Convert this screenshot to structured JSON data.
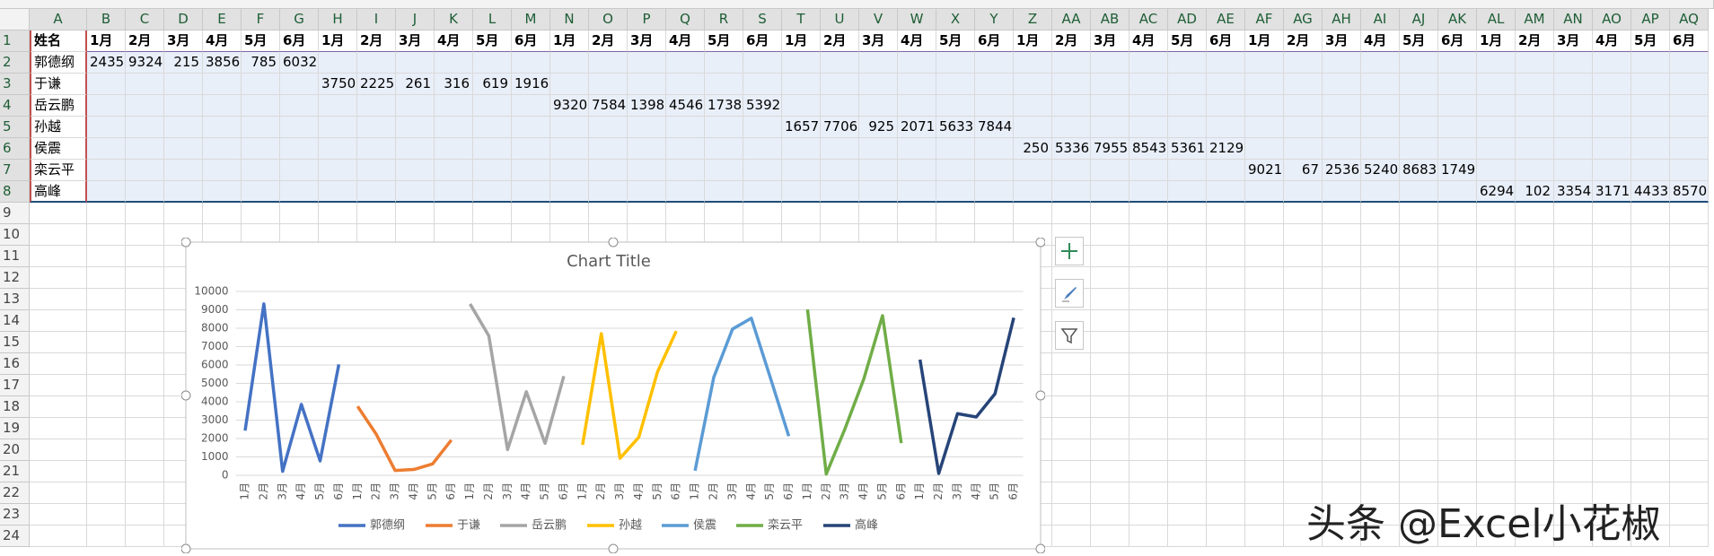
{
  "sheet": {
    "columns": [
      "A",
      "B",
      "C",
      "D",
      "E",
      "F",
      "G",
      "H",
      "I",
      "J",
      "K",
      "L",
      "M",
      "N",
      "O",
      "P",
      "Q",
      "R",
      "S",
      "T",
      "U",
      "V",
      "W",
      "X",
      "Y",
      "Z",
      "AA",
      "AB",
      "AC",
      "AD",
      "AE",
      "AF",
      "AG",
      "AH",
      "AI",
      "AJ",
      "AK",
      "AL",
      "AM",
      "AN",
      "AO",
      "AP",
      "AQ"
    ],
    "row_numbers": [
      1,
      2,
      3,
      4,
      5,
      6,
      7,
      8,
      9,
      10,
      11,
      12,
      13,
      14,
      15,
      16,
      17,
      18,
      19,
      20,
      21,
      22,
      23,
      24
    ],
    "rows": [
      [
        "姓名",
        "1月",
        "2月",
        "3月",
        "4月",
        "5月",
        "6月",
        "1月",
        "2月",
        "3月",
        "4月",
        "5月",
        "6月",
        "1月",
        "2月",
        "3月",
        "4月",
        "5月",
        "6月",
        "1月",
        "2月",
        "3月",
        "4月",
        "5月",
        "6月",
        "1月",
        "2月",
        "3月",
        "4月",
        "5月",
        "6月",
        "1月",
        "2月",
        "3月",
        "4月",
        "5月",
        "6月",
        "1月",
        "2月",
        "3月",
        "4月",
        "5月",
        "6月"
      ],
      [
        "郭德纲",
        2435,
        9324,
        215,
        3856,
        785,
        6032,
        null,
        null,
        null,
        null,
        null,
        null,
        null,
        null,
        null,
        null,
        null,
        null,
        null,
        null,
        null,
        null,
        null,
        null,
        null,
        null,
        null,
        null,
        null,
        null,
        null,
        null,
        null,
        null,
        null,
        null,
        null,
        null,
        null,
        null,
        null,
        null
      ],
      [
        "于谦",
        null,
        null,
        null,
        null,
        null,
        null,
        3750,
        2225,
        261,
        316,
        619,
        1916,
        null,
        null,
        null,
        null,
        null,
        null,
        null,
        null,
        null,
        null,
        null,
        null,
        null,
        null,
        null,
        null,
        null,
        null,
        null,
        null,
        null,
        null,
        null,
        null,
        null,
        null,
        null,
        null,
        null,
        null
      ],
      [
        "岳云鹏",
        null,
        null,
        null,
        null,
        null,
        null,
        null,
        null,
        null,
        null,
        null,
        null,
        9320,
        7584,
        1398,
        4546,
        1738,
        5392,
        null,
        null,
        null,
        null,
        null,
        null,
        null,
        null,
        null,
        null,
        null,
        null,
        null,
        null,
        null,
        null,
        null,
        null,
        null,
        null,
        null,
        null,
        null,
        null
      ],
      [
        "孙越",
        null,
        null,
        null,
        null,
        null,
        null,
        null,
        null,
        null,
        null,
        null,
        null,
        null,
        null,
        null,
        null,
        null,
        null,
        1657,
        7706,
        925,
        2071,
        5633,
        7844,
        null,
        null,
        null,
        null,
        null,
        null,
        null,
        null,
        null,
        null,
        null,
        null,
        null,
        null,
        null,
        null,
        null,
        null
      ],
      [
        "侯震",
        null,
        null,
        null,
        null,
        null,
        null,
        null,
        null,
        null,
        null,
        null,
        null,
        null,
        null,
        null,
        null,
        null,
        null,
        null,
        null,
        null,
        null,
        null,
        null,
        250,
        5336,
        7955,
        8543,
        5361,
        2129,
        null,
        null,
        null,
        null,
        null,
        null,
        null,
        null,
        null,
        null,
        null,
        null
      ],
      [
        "栾云平",
        null,
        null,
        null,
        null,
        null,
        null,
        null,
        null,
        null,
        null,
        null,
        null,
        null,
        null,
        null,
        null,
        null,
        null,
        null,
        null,
        null,
        null,
        null,
        null,
        null,
        null,
        null,
        null,
        null,
        null,
        9021,
        67,
        2536,
        5240,
        8683,
        1749,
        null,
        null,
        null,
        null,
        null,
        null
      ],
      [
        "高峰",
        null,
        null,
        null,
        null,
        null,
        null,
        null,
        null,
        null,
        null,
        null,
        null,
        null,
        null,
        null,
        null,
        null,
        null,
        null,
        null,
        null,
        null,
        null,
        null,
        null,
        null,
        null,
        null,
        null,
        null,
        null,
        null,
        null,
        null,
        null,
        null,
        6294,
        102,
        3354,
        3171,
        4433,
        8570
      ]
    ]
  },
  "chart_data": {
    "type": "line",
    "title": "Chart Title",
    "categories": [
      "1月",
      "2月",
      "3月",
      "4月",
      "5月",
      "6月",
      "1月",
      "2月",
      "3月",
      "4月",
      "5月",
      "6月",
      "1月",
      "2月",
      "3月",
      "4月",
      "5月",
      "6月",
      "1月",
      "2月",
      "3月",
      "4月",
      "5月",
      "6月",
      "1月",
      "2月",
      "3月",
      "4月",
      "5月",
      "6月",
      "1月",
      "2月",
      "3月",
      "4月",
      "5月",
      "6月",
      "1月",
      "2月",
      "3月",
      "4月",
      "5月",
      "6月"
    ],
    "ylim": [
      0,
      10000
    ],
    "yticks": [
      0,
      1000,
      2000,
      3000,
      4000,
      5000,
      6000,
      7000,
      8000,
      9000,
      10000
    ],
    "grid": true,
    "legend": "bottom",
    "series": [
      {
        "name": "郭德纲",
        "color": "#4472c4",
        "values": [
          2435,
          9324,
          215,
          3856,
          785,
          6032,
          null,
          null,
          null,
          null,
          null,
          null,
          null,
          null,
          null,
          null,
          null,
          null,
          null,
          null,
          null,
          null,
          null,
          null,
          null,
          null,
          null,
          null,
          null,
          null,
          null,
          null,
          null,
          null,
          null,
          null,
          null,
          null,
          null,
          null,
          null,
          null
        ]
      },
      {
        "name": "于谦",
        "color": "#ed7d31",
        "values": [
          null,
          null,
          null,
          null,
          null,
          null,
          3750,
          2225,
          261,
          316,
          619,
          1916,
          null,
          null,
          null,
          null,
          null,
          null,
          null,
          null,
          null,
          null,
          null,
          null,
          null,
          null,
          null,
          null,
          null,
          null,
          null,
          null,
          null,
          null,
          null,
          null,
          null,
          null,
          null,
          null,
          null,
          null
        ]
      },
      {
        "name": "岳云鹏",
        "color": "#a5a5a5",
        "values": [
          null,
          null,
          null,
          null,
          null,
          null,
          null,
          null,
          null,
          null,
          null,
          null,
          9320,
          7584,
          1398,
          4546,
          1738,
          5392,
          null,
          null,
          null,
          null,
          null,
          null,
          null,
          null,
          null,
          null,
          null,
          null,
          null,
          null,
          null,
          null,
          null,
          null,
          null,
          null,
          null,
          null,
          null,
          null
        ]
      },
      {
        "name": "孙越",
        "color": "#ffc000",
        "values": [
          null,
          null,
          null,
          null,
          null,
          null,
          null,
          null,
          null,
          null,
          null,
          null,
          null,
          null,
          null,
          null,
          null,
          null,
          1657,
          7706,
          925,
          2071,
          5633,
          7844,
          null,
          null,
          null,
          null,
          null,
          null,
          null,
          null,
          null,
          null,
          null,
          null,
          null,
          null,
          null,
          null,
          null,
          null
        ]
      },
      {
        "name": "侯震",
        "color": "#5b9bd5",
        "values": [
          null,
          null,
          null,
          null,
          null,
          null,
          null,
          null,
          null,
          null,
          null,
          null,
          null,
          null,
          null,
          null,
          null,
          null,
          null,
          null,
          null,
          null,
          null,
          null,
          250,
          5336,
          7955,
          8543,
          5361,
          2129,
          null,
          null,
          null,
          null,
          null,
          null,
          null,
          null,
          null,
          null,
          null,
          null
        ]
      },
      {
        "name": "栾云平",
        "color": "#70ad47",
        "values": [
          null,
          null,
          null,
          null,
          null,
          null,
          null,
          null,
          null,
          null,
          null,
          null,
          null,
          null,
          null,
          null,
          null,
          null,
          null,
          null,
          null,
          null,
          null,
          null,
          null,
          null,
          null,
          null,
          null,
          null,
          9021,
          67,
          2536,
          5240,
          8683,
          1749,
          null,
          null,
          null,
          null,
          null,
          null
        ]
      },
      {
        "name": "高峰",
        "color": "#264478",
        "values": [
          null,
          null,
          null,
          null,
          null,
          null,
          null,
          null,
          null,
          null,
          null,
          null,
          null,
          null,
          null,
          null,
          null,
          null,
          null,
          null,
          null,
          null,
          null,
          null,
          null,
          null,
          null,
          null,
          null,
          null,
          null,
          null,
          null,
          null,
          null,
          null,
          6294,
          102,
          3354,
          3171,
          4433,
          8570
        ]
      }
    ]
  },
  "watermark": "头条 @Excel小花椒"
}
